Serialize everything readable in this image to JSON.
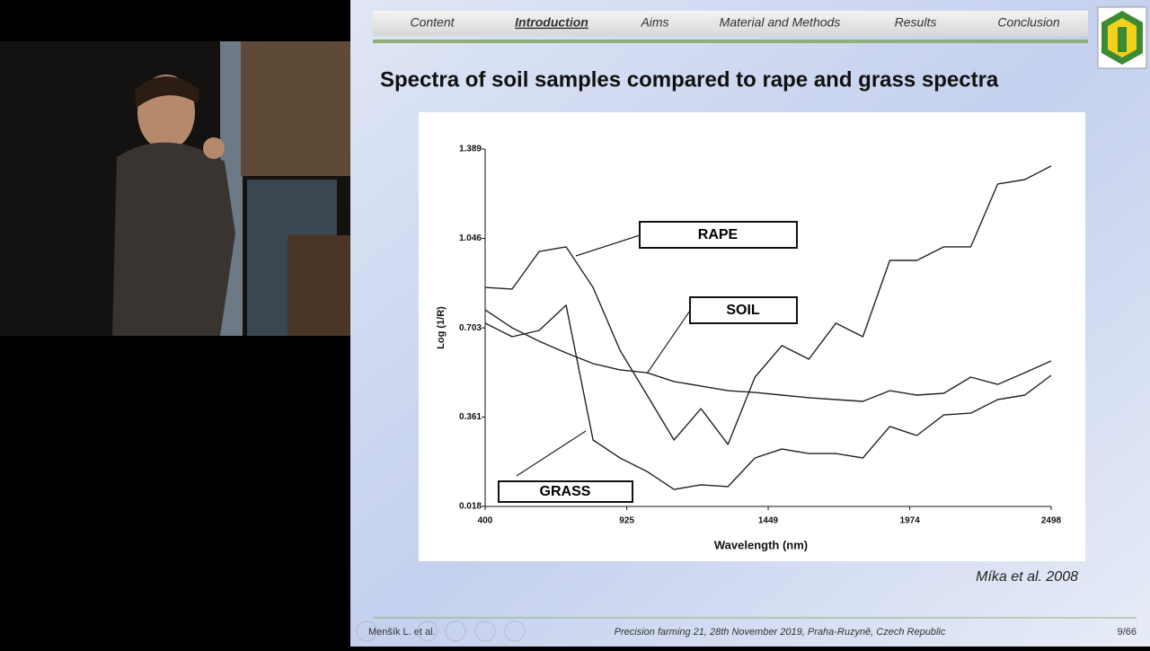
{
  "slide": {
    "nav": [
      "Content",
      "Introduction",
      "Aims",
      "Material and Methods",
      "Results",
      "Conclusion"
    ],
    "heading": "Spectra of soil samples compared to rape and grass spectra",
    "citation": "Míka et al. 2008",
    "footer_left": "Menšík L. et al.",
    "footer_center": "Precision farming 21, 28th November 2019, Praha-Ruzyně, Czech Republic",
    "page": "9/66"
  },
  "chart_data": {
    "type": "line",
    "x_label": "Wavelength (nm)",
    "y_label": "Log (1/R)",
    "x": [
      400,
      500,
      600,
      700,
      800,
      900,
      1000,
      1100,
      1200,
      1300,
      1400,
      1500,
      1600,
      1700,
      1800,
      1900,
      2000,
      2100,
      2200,
      2300,
      2400,
      2498
    ],
    "series": [
      {
        "name": "RAPE",
        "color": "#222222",
        "values": [
          0.858,
          0.852,
          0.996,
          1.014,
          0.858,
          0.617,
          0.445,
          0.273,
          0.393,
          0.256,
          0.514,
          0.635,
          0.583,
          0.721,
          0.669,
          0.962,
          0.962,
          1.014,
          1.014,
          1.255,
          1.272,
          1.324
        ]
      },
      {
        "name": "SOIL",
        "color": "#222222",
        "values": [
          0.772,
          0.703,
          0.652,
          0.607,
          0.566,
          0.542,
          0.531,
          0.497,
          0.48,
          0.462,
          0.455,
          0.445,
          0.435,
          0.428,
          0.421,
          0.462,
          0.445,
          0.452,
          0.514,
          0.486,
          0.531,
          0.576
        ]
      },
      {
        "name": "GRASS",
        "color": "#222222",
        "values": [
          0.721,
          0.669,
          0.693,
          0.79,
          0.273,
          0.204,
          0.152,
          0.083,
          0.101,
          0.094,
          0.204,
          0.238,
          0.221,
          0.221,
          0.204,
          0.325,
          0.29,
          0.369,
          0.376,
          0.428,
          0.445,
          0.521
        ]
      }
    ],
    "xlim": [
      400,
      2498
    ],
    "ylim": [
      0.018,
      1.389
    ],
    "xticks": [
      400,
      925,
      1449,
      1974,
      2498
    ],
    "yticks": [
      0.018,
      0.361,
      0.703,
      1.046,
      1.389
    ]
  }
}
